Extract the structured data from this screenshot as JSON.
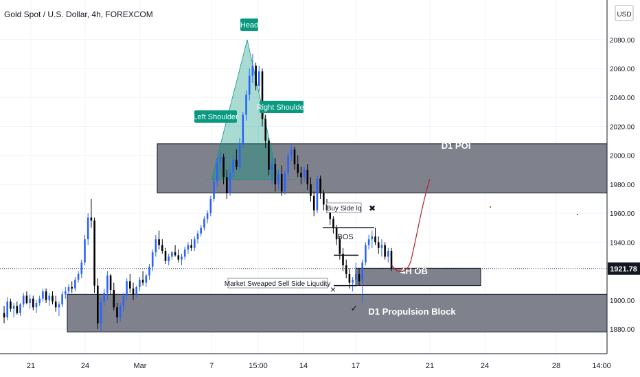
{
  "header": {
    "title": "Gold Spot / U.S. Dollar, 4h, FOREXCOM"
  },
  "price_axis": {
    "currency": "USD",
    "current_price_label": "1921.78"
  },
  "chart_data": {
    "type": "candlestick",
    "title": "Gold Spot / U.S. Dollar, 4h, FOREXCOM",
    "ylabel": "USD",
    "ylim": [
      1860,
      2080
    ],
    "y_ticks": [
      "1880.00",
      "1900.00",
      "1920.00",
      "1940.00",
      "1960.00",
      "1980.00",
      "2000.00",
      "2020.00",
      "2040.00",
      "2060.00",
      "2080.00"
    ],
    "x_ticks": [
      "21",
      "24",
      "Mar",
      "7",
      "15:00",
      "14",
      "17",
      "21",
      "24",
      "28",
      "14:00"
    ],
    "current_price": 1921.78,
    "grid": true,
    "zones": [
      {
        "label": "D1 POI",
        "low": 1974,
        "high": 2008
      },
      {
        "label": "4H OB",
        "low": 1910,
        "high": 1922
      },
      {
        "label": "D1 Propulsion Block",
        "low": 1878,
        "high": 1904
      }
    ],
    "annotations": [
      "Head",
      "Left Shoulder",
      "Right Shoulder",
      "Buy Side lq",
      "BOS",
      "Market Sweaped Sell Side Liqudity"
    ],
    "colors": {
      "up": "#2962ff",
      "down": "#000000",
      "zone": "#787b86",
      "head_tag": "#089981",
      "projection": "#b22222"
    },
    "candles": [
      [
        1891,
        1896,
        1884,
        1888
      ],
      [
        1888,
        1902,
        1886,
        1899
      ],
      [
        1899,
        1901,
        1892,
        1894
      ],
      [
        1894,
        1898,
        1888,
        1896
      ],
      [
        1896,
        1899,
        1890,
        1891
      ],
      [
        1891,
        1898,
        1889,
        1897
      ],
      [
        1897,
        1905,
        1895,
        1903
      ],
      [
        1903,
        1906,
        1897,
        1898
      ],
      [
        1898,
        1904,
        1894,
        1901
      ],
      [
        1901,
        1903,
        1893,
        1895
      ],
      [
        1895,
        1900,
        1891,
        1898
      ],
      [
        1898,
        1903,
        1896,
        1901
      ],
      [
        1901,
        1908,
        1899,
        1906
      ],
      [
        1906,
        1908,
        1898,
        1900
      ],
      [
        1900,
        1905,
        1896,
        1903
      ],
      [
        1903,
        1906,
        1897,
        1899
      ],
      [
        1899,
        1903,
        1892,
        1895
      ],
      [
        1895,
        1899,
        1889,
        1897
      ],
      [
        1897,
        1906,
        1895,
        1904
      ],
      [
        1904,
        1909,
        1901,
        1906
      ],
      [
        1906,
        1911,
        1903,
        1909
      ],
      [
        1909,
        1913,
        1905,
        1908
      ],
      [
        1908,
        1916,
        1906,
        1914
      ],
      [
        1914,
        1920,
        1912,
        1918
      ],
      [
        1918,
        1928,
        1915,
        1926
      ],
      [
        1926,
        1945,
        1924,
        1942
      ],
      [
        1942,
        1960,
        1938,
        1957
      ],
      [
        1957,
        1970,
        1950,
        1955
      ],
      [
        1955,
        1957,
        1905,
        1910
      ],
      [
        1910,
        1915,
        1880,
        1884
      ],
      [
        1884,
        1902,
        1878,
        1899
      ],
      [
        1899,
        1908,
        1896,
        1905
      ],
      [
        1905,
        1920,
        1900,
        1917
      ],
      [
        1917,
        1918,
        1904,
        1907
      ],
      [
        1907,
        1912,
        1893,
        1895
      ],
      [
        1895,
        1898,
        1884,
        1888
      ],
      [
        1888,
        1898,
        1885,
        1896
      ],
      [
        1896,
        1905,
        1892,
        1903
      ],
      [
        1903,
        1915,
        1900,
        1913
      ],
      [
        1913,
        1918,
        1905,
        1908
      ],
      [
        1908,
        1912,
        1900,
        1904
      ],
      [
        1904,
        1910,
        1902,
        1909
      ],
      [
        1909,
        1916,
        1906,
        1914
      ],
      [
        1914,
        1920,
        1910,
        1912
      ],
      [
        1912,
        1918,
        1909,
        1917
      ],
      [
        1917,
        1925,
        1914,
        1923
      ],
      [
        1923,
        1935,
        1920,
        1933
      ],
      [
        1933,
        1945,
        1930,
        1942
      ],
      [
        1942,
        1948,
        1935,
        1938
      ],
      [
        1938,
        1942,
        1932,
        1934
      ],
      [
        1934,
        1936,
        1925,
        1927
      ],
      [
        1927,
        1932,
        1924,
        1930
      ],
      [
        1930,
        1934,
        1928,
        1933
      ],
      [
        1933,
        1938,
        1930,
        1931
      ],
      [
        1931,
        1935,
        1926,
        1928
      ],
      [
        1928,
        1932,
        1924,
        1930
      ],
      [
        1930,
        1937,
        1928,
        1935
      ],
      [
        1935,
        1940,
        1932,
        1938
      ],
      [
        1938,
        1942,
        1934,
        1936
      ],
      [
        1936,
        1944,
        1934,
        1942
      ],
      [
        1942,
        1948,
        1939,
        1946
      ],
      [
        1946,
        1952,
        1944,
        1950
      ],
      [
        1950,
        1958,
        1948,
        1956
      ],
      [
        1956,
        1962,
        1953,
        1960
      ],
      [
        1960,
        1972,
        1958,
        1970
      ],
      [
        1970,
        1985,
        1968,
        1982
      ],
      [
        1982,
        1998,
        1978,
        1995
      ],
      [
        1995,
        2003,
        1988,
        1999
      ],
      [
        1999,
        2001,
        1980,
        1985
      ],
      [
        1985,
        1990,
        1970,
        1974
      ],
      [
        1974,
        1992,
        1972,
        1988
      ],
      [
        1988,
        2000,
        1984,
        1997
      ],
      [
        1997,
        2004,
        1990,
        1992
      ],
      [
        1992,
        2012,
        1990,
        2008
      ],
      [
        2008,
        2030,
        2005,
        2028
      ],
      [
        2028,
        2045,
        2024,
        2042
      ],
      [
        2042,
        2060,
        2038,
        2055
      ],
      [
        2055,
        2070,
        2050,
        2062
      ],
      [
        2062,
        2064,
        2045,
        2048
      ],
      [
        2048,
        2062,
        2044,
        2058
      ],
      [
        2058,
        2060,
        2020,
        2025
      ],
      [
        2025,
        2028,
        2005,
        2010
      ],
      [
        2010,
        2012,
        1986,
        1990
      ],
      [
        1990,
        1998,
        1980,
        1994
      ],
      [
        1994,
        1998,
        1975,
        1980
      ],
      [
        1980,
        1990,
        1976,
        1987
      ],
      [
        1987,
        1993,
        1972,
        1975
      ],
      [
        1975,
        1990,
        1973,
        1988
      ],
      [
        1988,
        2002,
        1985,
        2000
      ],
      [
        2000,
        2008,
        1996,
        2004
      ],
      [
        2004,
        2006,
        1990,
        1994
      ],
      [
        1994,
        2000,
        1985,
        1988
      ],
      [
        1988,
        1992,
        1980,
        1985
      ],
      [
        1985,
        1992,
        1982,
        1990
      ],
      [
        1990,
        1994,
        1976,
        1980
      ],
      [
        1980,
        1985,
        1968,
        1972
      ],
      [
        1972,
        1975,
        1958,
        1962
      ],
      [
        1962,
        1986,
        1960,
        1984
      ],
      [
        1984,
        1986,
        1970,
        1974
      ],
      [
        1974,
        1976,
        1962,
        1966
      ],
      [
        1966,
        1970,
        1960,
        1962
      ],
      [
        1962,
        1964,
        1952,
        1956
      ],
      [
        1956,
        1958,
        1946,
        1950
      ],
      [
        1950,
        1952,
        1938,
        1942
      ],
      [
        1942,
        1944,
        1928,
        1932
      ],
      [
        1932,
        1936,
        1920,
        1924
      ],
      [
        1924,
        1928,
        1915,
        1918
      ],
      [
        1918,
        1922,
        1908,
        1912
      ],
      [
        1912,
        1916,
        1906,
        1914
      ],
      [
        1914,
        1926,
        1910,
        1918
      ],
      [
        1918,
        1922,
        1910,
        1913
      ],
      [
        1913,
        1928,
        1898,
        1926
      ],
      [
        1926,
        1940,
        1924,
        1938
      ],
      [
        1938,
        1945,
        1935,
        1942
      ],
      [
        1942,
        1948,
        1936,
        1944
      ],
      [
        1944,
        1950,
        1938,
        1940
      ],
      [
        1940,
        1944,
        1932,
        1936
      ],
      [
        1936,
        1942,
        1930,
        1938
      ],
      [
        1938,
        1940,
        1928,
        1930
      ],
      [
        1930,
        1936,
        1926,
        1934
      ],
      [
        1934,
        1936,
        1920,
        1921.78
      ]
    ],
    "projection": [
      [
        1922,
        1
      ],
      [
        1914,
        4
      ],
      [
        1918,
        8
      ],
      [
        1935,
        12
      ],
      [
        1955,
        16
      ],
      [
        1970,
        19
      ]
    ]
  }
}
